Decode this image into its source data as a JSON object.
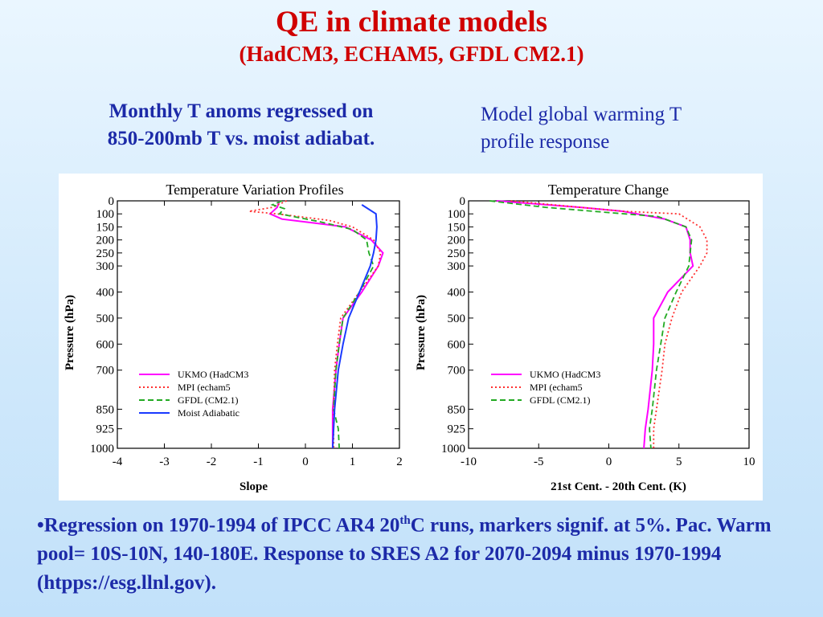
{
  "slide": {
    "title": "QE in climate models",
    "subtitle": "(HadCM3, ECHAM5, GFDL CM2.1)",
    "caption_left": [
      "Monthly T anoms regressed on",
      "850-200mb T vs. moist adiabat."
    ],
    "caption_right": [
      "Model global warming T",
      "profile response"
    ],
    "note": {
      "bullet": "•",
      "before_sup": "Regression on 1970-1994 of IPCC AR4 20",
      "sup": "th",
      "after_sup": "C runs, markers signif. at 5%. Pac. Warm pool= 10S-10N, 140-180E. Response to SRES A2 for 2070-2094 minus 1970-1994 (htpps://esg.llnl.gov)."
    }
  },
  "chart_data": [
    {
      "type": "line",
      "title": "Temperature Variation Profiles",
      "xlabel": "Slope",
      "ylabel": "Pressure (hPa)",
      "xlim": [
        -4,
        2
      ],
      "ylim": [
        1000,
        0
      ],
      "xticks": [
        "-4",
        "-3",
        "-2",
        "-1",
        "0",
        "1",
        "2"
      ],
      "yticks": [
        "0",
        "100",
        "150",
        "200",
        "250",
        "300",
        "400",
        "500",
        "600",
        "700",
        "850",
        "925",
        "1000"
      ],
      "legend_position": "bottom-left",
      "series": [
        {
          "name": "UKMO (HadCM3",
          "color": "#ff00ff",
          "dash": "solid",
          "points": [
            [
              -0.55,
              0
            ],
            [
              -0.6,
              50
            ],
            [
              -0.75,
              100
            ],
            [
              -0.5,
              120
            ],
            [
              0.85,
              150
            ],
            [
              1.4,
              200
            ],
            [
              1.65,
              250
            ],
            [
              1.55,
              300
            ],
            [
              1.2,
              400
            ],
            [
              0.8,
              500
            ],
            [
              0.72,
              600
            ],
            [
              0.65,
              700
            ],
            [
              0.58,
              850
            ],
            [
              0.58,
              925
            ],
            [
              0.58,
              1000
            ]
          ]
        },
        {
          "name": "MPI (echam5",
          "color": "#ff3030",
          "dash": "dotted",
          "points": [
            [
              -0.4,
              0
            ],
            [
              -0.7,
              50
            ],
            [
              -1.2,
              80
            ],
            [
              -0.6,
              100
            ],
            [
              0.5,
              125
            ],
            [
              1.0,
              150
            ],
            [
              1.45,
              200
            ],
            [
              1.6,
              250
            ],
            [
              1.55,
              300
            ],
            [
              1.15,
              400
            ],
            [
              0.75,
              500
            ],
            [
              0.68,
              600
            ],
            [
              0.62,
              700
            ],
            [
              0.6,
              850
            ],
            [
              0.6,
              925
            ],
            [
              0.6,
              1000
            ]
          ]
        },
        {
          "name": "GFDL (CM2.1)",
          "color": "#22aa22",
          "dash": "dashed",
          "points": [
            [
              -0.5,
              0
            ],
            [
              -0.7,
              30
            ],
            [
              -0.45,
              60
            ],
            [
              -0.55,
              100
            ],
            [
              0.3,
              130
            ],
            [
              1.0,
              160
            ],
            [
              1.3,
              200
            ],
            [
              1.35,
              250
            ],
            [
              1.45,
              300
            ],
            [
              1.15,
              400
            ],
            [
              0.8,
              500
            ],
            [
              0.72,
              600
            ],
            [
              0.65,
              700
            ],
            [
              0.6,
              850
            ],
            [
              0.7,
              925
            ],
            [
              0.72,
              1000
            ]
          ]
        },
        {
          "name": "Moist Adiabatic",
          "color": "#1a3aff",
          "dash": "solid",
          "points": [
            [
              1.2,
              30
            ],
            [
              1.5,
              100
            ],
            [
              1.52,
              150
            ],
            [
              1.5,
              200
            ],
            [
              1.45,
              250
            ],
            [
              1.38,
              300
            ],
            [
              1.15,
              400
            ],
            [
              0.92,
              500
            ],
            [
              0.8,
              600
            ],
            [
              0.7,
              700
            ],
            [
              0.62,
              850
            ],
            [
              0.6,
              925
            ],
            [
              0.58,
              1000
            ]
          ]
        }
      ]
    },
    {
      "type": "line",
      "title": "Temperature Change",
      "xlabel": "21st Cent. - 20th Cent. (K)",
      "ylabel": "Pressure (hPa)",
      "xlim": [
        -10,
        10
      ],
      "ylim": [
        1000,
        0
      ],
      "xticks": [
        "-10",
        "-5",
        "0",
        "5",
        "10"
      ],
      "yticks": [
        "0",
        "100",
        "150",
        "200",
        "250",
        "300",
        "400",
        "500",
        "600",
        "700",
        "850",
        "925",
        "1000"
      ],
      "legend_position": "bottom-left",
      "series": [
        {
          "name": "UKMO (HadCM3",
          "color": "#ff00ff",
          "dash": "solid",
          "points": [
            [
              -8,
              0
            ],
            [
              -2,
              50
            ],
            [
              1,
              80
            ],
            [
              4,
              120
            ],
            [
              5.5,
              150
            ],
            [
              5.8,
              200
            ],
            [
              5.8,
              250
            ],
            [
              6,
              300
            ],
            [
              4.2,
              400
            ],
            [
              3.2,
              500
            ],
            [
              3.2,
              600
            ],
            [
              3.1,
              700
            ],
            [
              2.8,
              850
            ],
            [
              2.6,
              925
            ],
            [
              2.5,
              1000
            ]
          ]
        },
        {
          "name": "MPI (echam5",
          "color": "#ff3030",
          "dash": "dotted",
          "points": [
            [
              -7,
              0
            ],
            [
              -3,
              40
            ],
            [
              1,
              80
            ],
            [
              5,
              100
            ],
            [
              6.5,
              150
            ],
            [
              7,
              200
            ],
            [
              7,
              250
            ],
            [
              6.5,
              300
            ],
            [
              5.2,
              400
            ],
            [
              4.5,
              500
            ],
            [
              4,
              600
            ],
            [
              3.8,
              700
            ],
            [
              3.4,
              850
            ],
            [
              3.2,
              925
            ],
            [
              3.2,
              1000
            ]
          ]
        },
        {
          "name": "GFDL (CM2.1)",
          "color": "#22aa22",
          "dash": "dashed",
          "points": [
            [
              -8.5,
              0
            ],
            [
              -4.5,
              50
            ],
            [
              0,
              90
            ],
            [
              3.5,
              110
            ],
            [
              5.5,
              150
            ],
            [
              5.9,
              200
            ],
            [
              5.8,
              250
            ],
            [
              5.7,
              300
            ],
            [
              4.8,
              400
            ],
            [
              4,
              500
            ],
            [
              3.7,
              600
            ],
            [
              3.4,
              700
            ],
            [
              3.1,
              850
            ],
            [
              2.9,
              925
            ],
            [
              3,
              1000
            ]
          ]
        }
      ]
    }
  ]
}
